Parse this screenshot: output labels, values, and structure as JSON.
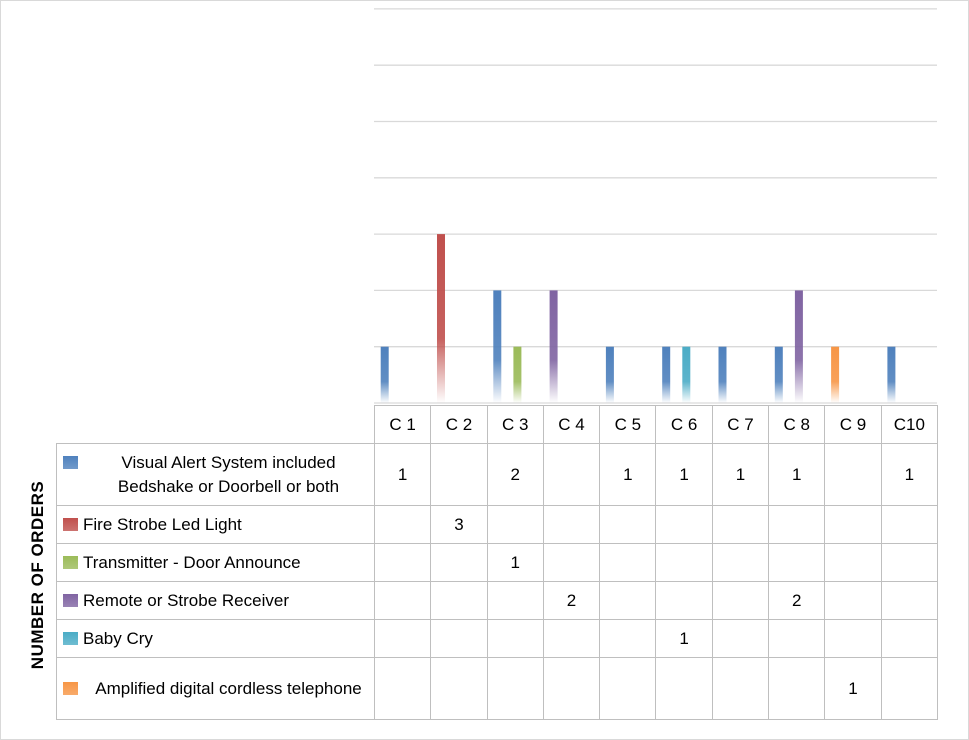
{
  "chart_data": {
    "type": "bar",
    "ylabel": "NUMBER OF ORDERS",
    "ylim": [
      0,
      7
    ],
    "grid": true,
    "legend_placement": "data-table",
    "categories": [
      "C 1",
      "C 2",
      "C 3",
      "C 4",
      "C 5",
      "C 6",
      "C 7",
      "C 8",
      "C 9",
      "C10"
    ],
    "series": [
      {
        "name": "Visual Alert System included Bedshake or Doorbell or both",
        "color": "#4f81bd",
        "values": [
          1,
          null,
          2,
          null,
          1,
          1,
          1,
          1,
          null,
          1
        ]
      },
      {
        "name": "Fire Strobe Led Light",
        "color": "#c0504d",
        "values": [
          null,
          3,
          null,
          null,
          null,
          null,
          null,
          null,
          null,
          null
        ]
      },
      {
        "name": "Transmitter - Door Announce",
        "color": "#9bbb59",
        "values": [
          null,
          null,
          1,
          null,
          null,
          null,
          null,
          null,
          null,
          null
        ]
      },
      {
        "name": "Remote or Strobe Receiver",
        "color": "#8064a2",
        "values": [
          null,
          null,
          null,
          2,
          null,
          null,
          null,
          2,
          null,
          null
        ]
      },
      {
        "name": "Baby Cry",
        "color": "#4bacc6",
        "values": [
          null,
          null,
          null,
          null,
          null,
          1,
          null,
          null,
          null,
          null
        ]
      },
      {
        "name": "Amplified digital cordless telephone",
        "color": "#f79646",
        "values": [
          null,
          null,
          null,
          null,
          null,
          null,
          null,
          null,
          1,
          null
        ]
      }
    ]
  }
}
